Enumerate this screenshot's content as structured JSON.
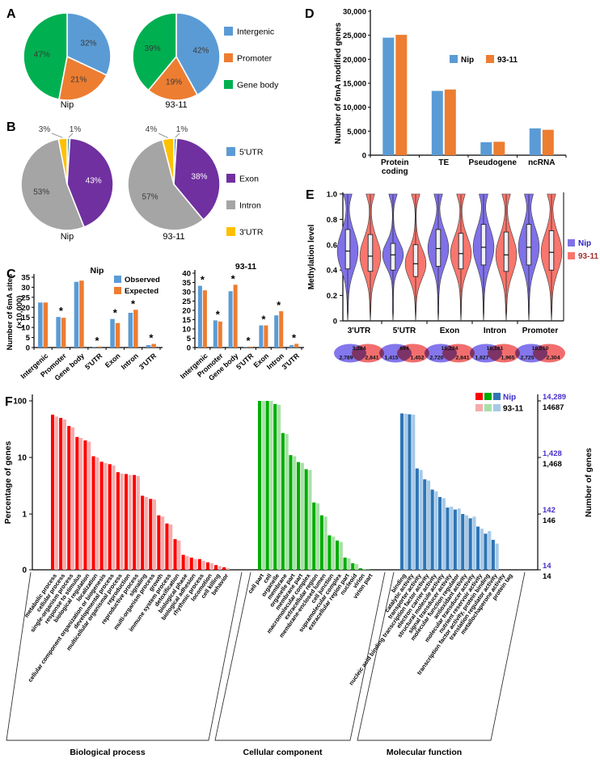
{
  "figure": {
    "panel_labels": [
      "A",
      "B",
      "C",
      "D",
      "E",
      "F"
    ],
    "varieties": [
      "Nip",
      "93-11"
    ]
  },
  "colors": {
    "office_blue": "#5B9BD5",
    "office_orange": "#ED7D31",
    "office_green": "#00B050",
    "office_purple": "#7030A0",
    "office_gray": "#A5A5A5",
    "office_gold": "#FFC000",
    "violin_nip": "#8071E8",
    "violin_9311": "#F8766D",
    "go_red": "#FF0000",
    "go_green": "#00AD00",
    "go_blue": "#2E75B6",
    "go_red_light": "#F5ACAC",
    "go_green_light": "#A8E0A8",
    "go_blue_light": "#A6C9E8",
    "nip_text_purple": "#3A2CC8"
  },
  "chart_data": [
    {
      "id": "pie-a",
      "type": "pie",
      "panel": "A",
      "legend": [
        {
          "label": "Intergenic",
          "color": "#5B9BD5"
        },
        {
          "label": "Promoter",
          "color": "#ED7D31"
        },
        {
          "label": "Gene body",
          "color": "#00B050"
        }
      ],
      "pies": [
        {
          "name": "Nip",
          "slices": [
            {
              "label": "Intergenic",
              "pct": 32,
              "label_pos": "in"
            },
            {
              "label": "Promoter",
              "pct": 21,
              "label_pos": "in"
            },
            {
              "label": "Gene body",
              "pct": 47,
              "label_pos": "in"
            }
          ]
        },
        {
          "name": "93-11",
          "slices": [
            {
              "label": "Intergenic",
              "pct": 42,
              "label_pos": "in"
            },
            {
              "label": "Promoter",
              "pct": 19,
              "label_pos": "in"
            },
            {
              "label": "Gene body",
              "pct": 39,
              "label_pos": "in"
            }
          ]
        }
      ]
    },
    {
      "id": "pie-b",
      "type": "pie",
      "panel": "B",
      "legend": [
        {
          "label": "5'UTR",
          "color": "#5B9BD5"
        },
        {
          "label": "Exon",
          "color": "#7030A0"
        },
        {
          "label": "Intron",
          "color": "#A5A5A5"
        },
        {
          "label": "3'UTR",
          "color": "#FFC000"
        }
      ],
      "pies": [
        {
          "name": "Nip",
          "slices": [
            {
              "label": "5'UTR",
              "pct": 1,
              "label_pos": "out-right"
            },
            {
              "label": "Exon",
              "pct": 43,
              "label_pos": "in",
              "text_color": "#FFFFFF"
            },
            {
              "label": "Intron",
              "pct": 53,
              "label_pos": "in"
            },
            {
              "label": "3'UTR",
              "pct": 3,
              "label_pos": "out-left"
            }
          ]
        },
        {
          "name": "93-11",
          "slices": [
            {
              "label": "5'UTR",
              "pct": 1,
              "label_pos": "out-right"
            },
            {
              "label": "Exon",
              "pct": 38,
              "label_pos": "in",
              "text_color": "#FFFFFF"
            },
            {
              "label": "Intron",
              "pct": 57,
              "label_pos": "in"
            },
            {
              "label": "3'UTR",
              "pct": 4,
              "label_pos": "out-left"
            }
          ]
        }
      ]
    },
    {
      "id": "bar-c",
      "type": "grouped_bar",
      "panel": "C",
      "ylabel": [
        "Number of 6mA sites",
        "(×10,000)"
      ],
      "series_names": [
        "Observed",
        "Expected"
      ],
      "series_colors": [
        "#5B9BD5",
        "#ED7D31"
      ],
      "categories": [
        "Intergenic",
        "Promoter",
        "Gene body",
        "5'UTR",
        "Exon",
        "Intron",
        "3'UTR"
      ],
      "star_symbol": "*",
      "charts": [
        {
          "title": "Nip",
          "ymax": 35,
          "ytick": 5,
          "observed": [
            22.4,
            15.2,
            32.7,
            0.3,
            14.2,
            17.3,
            1.2
          ],
          "expected": [
            22.4,
            14.8,
            33.3,
            0.5,
            12.2,
            18.8,
            1.8
          ],
          "significant": [
            false,
            true,
            false,
            true,
            true,
            true,
            true
          ]
        },
        {
          "title": "93-11",
          "ymax": 40,
          "ytick": 5,
          "observed": [
            33.2,
            14.6,
            30.3,
            0.3,
            11.9,
            17.3,
            1.3
          ],
          "expected": [
            30.8,
            14.0,
            33.8,
            0.5,
            11.9,
            19.5,
            2.0
          ],
          "significant": [
            true,
            true,
            true,
            true,
            true,
            true,
            true
          ]
        }
      ]
    },
    {
      "id": "bar-d",
      "type": "grouped_bar",
      "panel": "D",
      "ylabel": "Number of 6mA modified genes",
      "ymax": 30000,
      "ytick": 5000,
      "categories": [
        "Protein coding",
        "TE",
        "Pseudogene",
        "ncRNA"
      ],
      "series": [
        {
          "name": "Nip",
          "color": "#5B9BD5",
          "values": [
            24500,
            13400,
            2700,
            5600
          ]
        },
        {
          "name": "93-11",
          "color": "#ED7D31",
          "values": [
            25100,
            13700,
            2800,
            5300
          ]
        }
      ]
    },
    {
      "id": "violin-e",
      "type": "violin",
      "panel": "E",
      "ylabel": "Methylation level",
      "ylim": [
        0,
        1
      ],
      "ytick": 0.2,
      "groups": [
        "3'UTR",
        "5'UTR",
        "Exon",
        "Intron",
        "Promoter"
      ],
      "series": [
        {
          "name": "Nip",
          "color": "#8071E8",
          "label_color": "#2B21C0",
          "stats": [
            [
              0.55,
              0.41,
              0.72
            ],
            [
              0.52,
              0.4,
              0.61
            ],
            [
              0.57,
              0.43,
              0.72
            ],
            [
              0.58,
              0.44,
              0.76
            ],
            [
              0.58,
              0.44,
              0.76
            ]
          ]
        },
        {
          "name": "93-11",
          "color": "#F8766D",
          "label_color": "#A03030",
          "stats": [
            [
              0.51,
              0.39,
              0.68
            ],
            [
              0.45,
              0.35,
              0.6
            ],
            [
              0.53,
              0.41,
              0.69
            ],
            [
              0.52,
              0.39,
              0.7
            ],
            [
              0.54,
              0.4,
              0.71
            ]
          ]
        }
      ],
      "venn": {
        "colors": {
          "nip": "#8476EC",
          "i9311": "#F26E6E"
        },
        "items": [
          {
            "group": "3'UTR",
            "shared": "3,284",
            "nip": "2,789",
            "i9311": "2,841"
          },
          {
            "group": "5'UTR",
            "shared": "694",
            "nip": "1,415",
            "i9311": "1,452"
          },
          {
            "group": "Exon",
            "shared": "15,224",
            "nip": "2,720",
            "i9311": "2,841"
          },
          {
            "group": "Intron",
            "shared": "16,161",
            "nip": "1,627",
            "i9311": "1,965"
          },
          {
            "group": "Promoter",
            "shared": "10,010",
            "nip": "2,725",
            "i9311": "2,304"
          }
        ]
      }
    },
    {
      "id": "go-f",
      "type": "bar_log",
      "panel": "F",
      "ylabel_left": "Percentage of genes",
      "ylabel_right": "Number of genes",
      "yticks_left": [
        "100",
        "10",
        "1",
        "0"
      ],
      "right_axis_labels": [
        [
          "14,289",
          "14687"
        ],
        [
          "1,428",
          "1,468"
        ],
        [
          "142",
          "146"
        ],
        [
          "14",
          "14"
        ]
      ],
      "right_axis_nip_color": "#4A2FC9",
      "legend": {
        "nip": "Nip",
        "i9311": "93-11",
        "nip_text_color": "#3A2CC8"
      },
      "groups": [
        {
          "name": "Biological process",
          "color": "#FF0000",
          "color_light": "#F5ACAC",
          "categories": [
            "metabolic process",
            "cellular process",
            "single-organism process",
            "response to stimulus",
            "biological regulation",
            "localization",
            "cellular component organization or biogenesis",
            "developmental process",
            "multicellular organismal process",
            "reproduction",
            "reproductive process",
            "signaling",
            "multi-organism process",
            "growth",
            "immune system process",
            "detoxification",
            "biological phase",
            "biological adhesion",
            "rhythmic process",
            "locomotion",
            "cell killing",
            "behavior"
          ],
          "nip": [
            57,
            50,
            36,
            23,
            20,
            10.5,
            8.4,
            7.6,
            5.5,
            5.1,
            4.9,
            2.1,
            1.85,
            0.95,
            0.68,
            0.36,
            0.19,
            0.17,
            0.16,
            0.14,
            0.125,
            0.115
          ],
          "i9311": [
            53,
            47,
            34,
            22,
            19,
            10,
            8,
            7.2,
            5.2,
            4.9,
            4.7,
            2.0,
            1.8,
            0.9,
            0.65,
            0.34,
            0.18,
            0.16,
            0.15,
            0.135,
            0.12,
            0.11
          ]
        },
        {
          "name": "Cellular component",
          "color": "#00AD00",
          "color_light": "#A8E0A8",
          "categories": [
            "cell part",
            "cell",
            "organelle",
            "membrane",
            "organelle part",
            "membrane part",
            "macromolecular complex",
            "extracellular region",
            "membrane-enclosed lumen",
            "cell junction",
            "supramolecular complex",
            "extracellular region part",
            "nucleoid",
            "virion",
            "virion part"
          ],
          "nip": [
            100,
            100,
            88,
            27,
            11,
            8.3,
            6.2,
            1.6,
            0.95,
            0.42,
            0.34,
            0.17,
            0.135,
            0.11,
            0.105
          ],
          "i9311": [
            100,
            100,
            85,
            26,
            10.5,
            8,
            6,
            1.55,
            0.9,
            0.4,
            0.32,
            0.165,
            0.13,
            0.107,
            0.1
          ]
        },
        {
          "name": "Molecular function",
          "color": "#2E75B6",
          "color_light": "#A6C9E8",
          "categories": [
            "binding",
            "catalytic activity",
            "transporter activity",
            "nucleic acid binding transcription factor activity",
            "electron carrier activity",
            "structural molecule activity",
            "signal transducer activity",
            "molecular function regulator",
            "antioxidant activity",
            "molecular transducer activity",
            "nutrient reservoir activity",
            "transcription factor activity, protein binding",
            "translation regulator activity",
            "metallochaperone activity",
            "protein tag"
          ],
          "nip": [
            60,
            58,
            6.4,
            4.1,
            2.7,
            2.0,
            1.3,
            1.2,
            1.0,
            0.84,
            0.6,
            0.45,
            0.35,
            0,
            0
          ],
          "i9311": [
            59,
            57,
            6.0,
            3.9,
            2.5,
            1.9,
            1.35,
            1.25,
            0.95,
            0.9,
            0.55,
            0.5,
            0.3,
            0,
            0
          ]
        }
      ]
    }
  ]
}
